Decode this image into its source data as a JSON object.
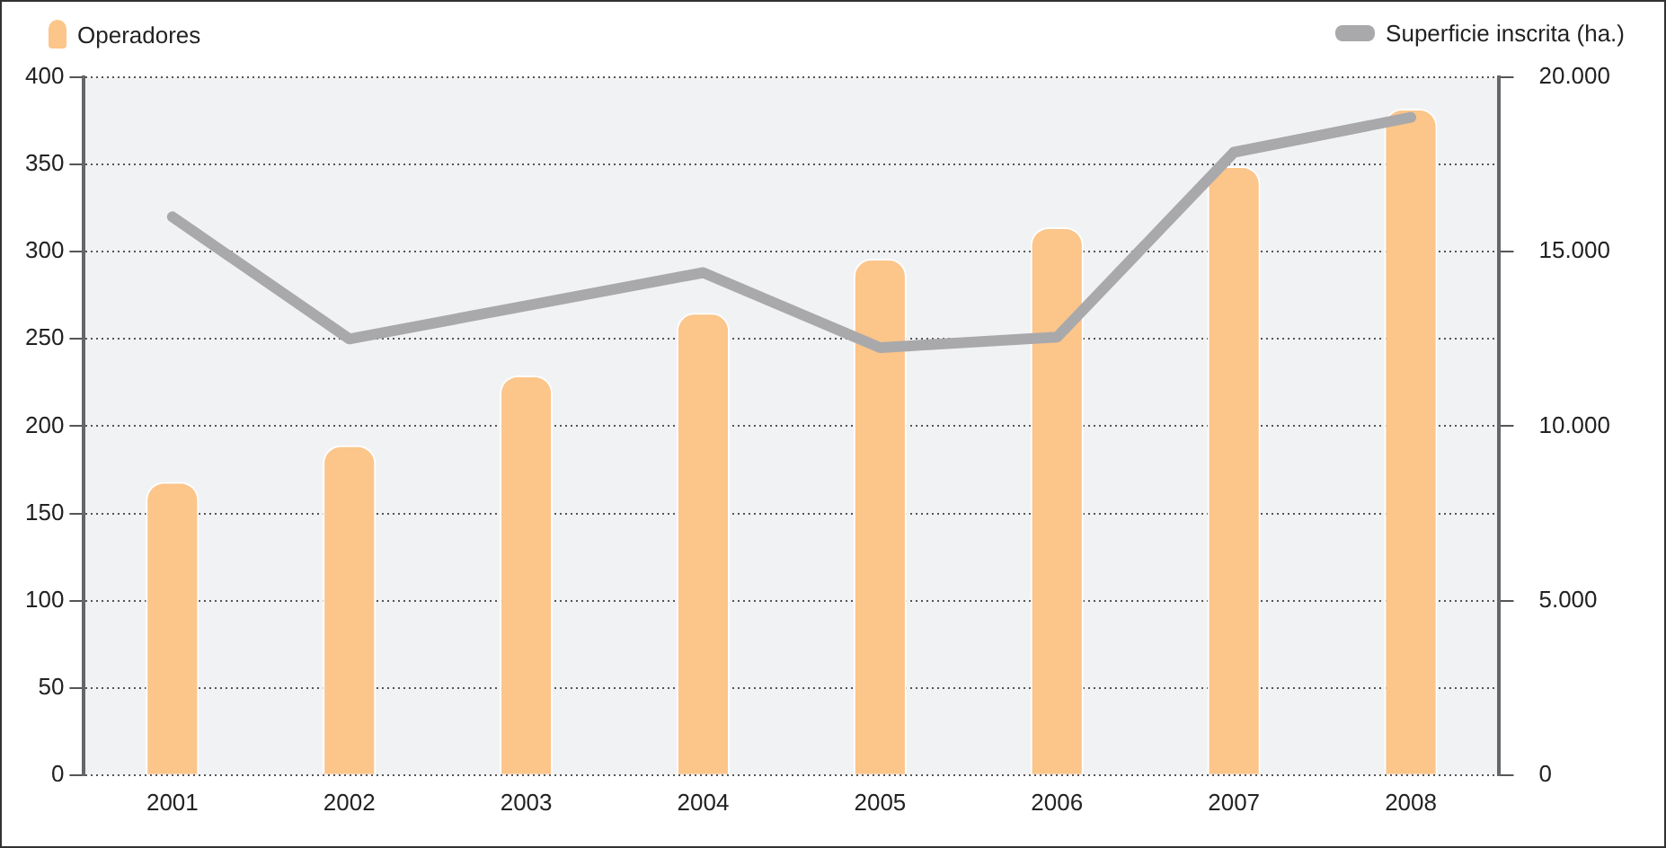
{
  "chart_data": {
    "type": "bar",
    "categories": [
      "2001",
      "2002",
      "2003",
      "2004",
      "2005",
      "2006",
      "2007",
      "2008"
    ],
    "series": [
      {
        "name": "Operadores",
        "color": "#fcc58a",
        "values": [
          168,
          189,
          229,
          265,
          296,
          314,
          349,
          382
        ]
      },
      {
        "name": "Superficie inscrita (ha.)",
        "type": "line",
        "axis": "y2",
        "color": "#a9a9ac",
        "values": [
          16000,
          12500,
          13450,
          14400,
          12250,
          12550,
          17850,
          18850
        ]
      }
    ],
    "ylim": [
      0,
      400
    ],
    "yticks": [
      0,
      50,
      100,
      150,
      200,
      250,
      300,
      350,
      400
    ],
    "y2lim": [
      0,
      20000
    ],
    "y2ticks": [
      {
        "value": 0,
        "label": "0"
      },
      {
        "value": 5000,
        "label": "5.000"
      },
      {
        "value": 10000,
        "label": "10.000"
      },
      {
        "value": 15000,
        "label": "15.000"
      },
      {
        "value": 20000,
        "label": "20.000"
      }
    ],
    "grid": "y",
    "legend": "top",
    "marker": "none"
  }
}
